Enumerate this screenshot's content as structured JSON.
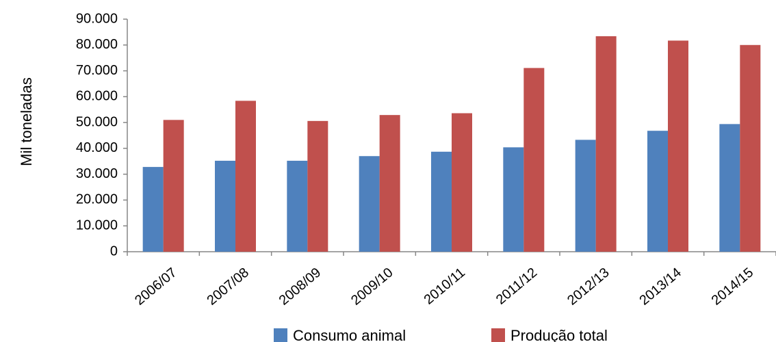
{
  "chart_data": {
    "type": "bar",
    "title": "",
    "xlabel": "",
    "ylabel": "Mil toneladas",
    "ylim": [
      0,
      90000
    ],
    "yticks": [
      "0",
      "10.000",
      "20.000",
      "30.000",
      "40.000",
      "50.000",
      "60.000",
      "70.000",
      "80.000",
      "90.000"
    ],
    "grid": false,
    "legend_position": "bottom",
    "categories": [
      "2006/07",
      "2007/08",
      "2008/09",
      "2009/10",
      "2010/11",
      "2011/12",
      "2012/13",
      "2013/14",
      "2014/15"
    ],
    "series": [
      {
        "name": "Consumo animal",
        "color": "#4F81BD",
        "values": [
          32800,
          35200,
          35200,
          37000,
          38700,
          40400,
          43300,
          46800,
          49400
        ]
      },
      {
        "name": "Produção total",
        "color": "#C0504D",
        "values": [
          51000,
          58400,
          50600,
          52900,
          53600,
          71100,
          83400,
          81700,
          80000
        ]
      }
    ]
  }
}
